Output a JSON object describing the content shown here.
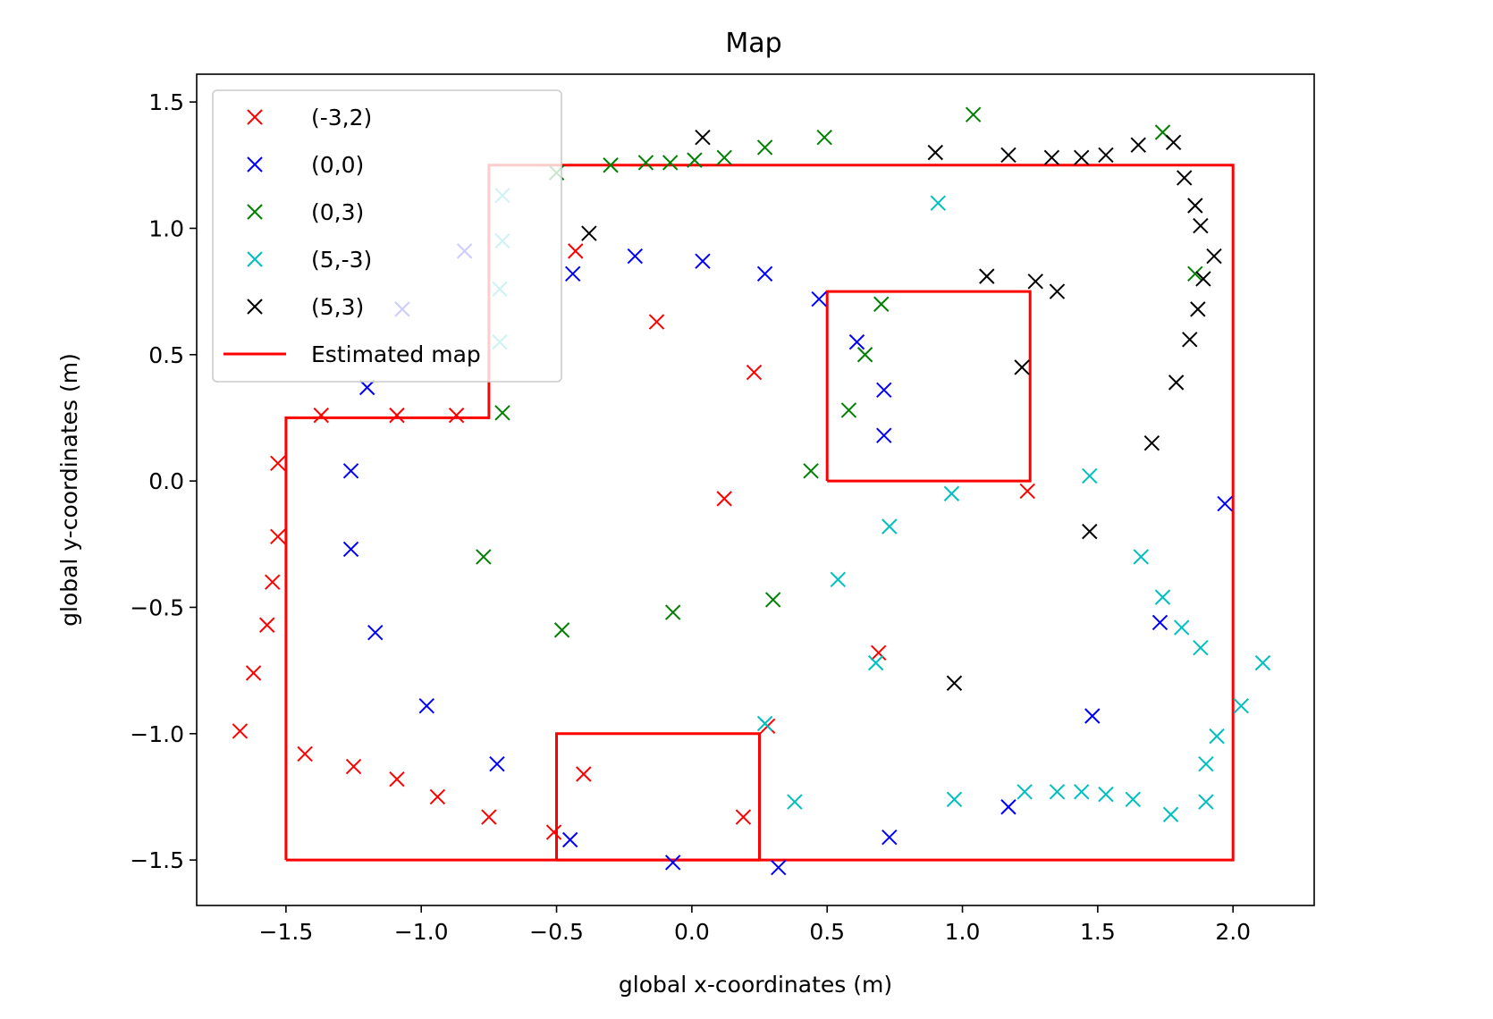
{
  "chart_data": {
    "type": "scatter",
    "title": "Map",
    "xlabel": "global x-coordinates (m)",
    "ylabel": "global y-coordinates (m)",
    "xlim": [
      -1.83,
      2.3
    ],
    "ylim": [
      -1.68,
      1.61
    ],
    "xticks": [
      -1.5,
      -1.0,
      -0.5,
      0.0,
      0.5,
      1.0,
      1.5,
      2.0
    ],
    "xtick_labels": [
      "−1.5",
      "−1.0",
      "−0.5",
      "0.0",
      "0.5",
      "1.0",
      "1.5",
      "2.0"
    ],
    "yticks": [
      -1.5,
      -1.0,
      -0.5,
      0.0,
      0.5,
      1.0,
      1.5
    ],
    "ytick_labels": [
      "−1.5",
      "−1.0",
      "−0.5",
      "0.0",
      "0.5",
      "1.0",
      "1.5"
    ],
    "grid": false,
    "legend_position": "upper-left",
    "series": [
      {
        "name": "(-3,2)",
        "color": "#ff0000",
        "marker": "x",
        "points": [
          [
            -1.67,
            -0.99
          ],
          [
            -1.62,
            -0.76
          ],
          [
            -1.57,
            -0.57
          ],
          [
            -1.55,
            -0.4
          ],
          [
            -1.53,
            -0.22
          ],
          [
            -1.53,
            0.07
          ],
          [
            -1.43,
            -1.08
          ],
          [
            -1.37,
            0.26
          ],
          [
            -1.25,
            -1.13
          ],
          [
            -1.09,
            0.26
          ],
          [
            -1.09,
            -1.18
          ],
          [
            -0.94,
            -1.25
          ],
          [
            -0.87,
            0.26
          ],
          [
            -0.75,
            -1.33
          ],
          [
            -0.51,
            -1.39
          ],
          [
            -0.43,
            0.91
          ],
          [
            -0.4,
            -1.16
          ],
          [
            -0.13,
            0.63
          ],
          [
            0.12,
            -0.07
          ],
          [
            0.23,
            0.43
          ],
          [
            0.19,
            -1.33
          ],
          [
            0.28,
            -0.97
          ],
          [
            0.69,
            -0.68
          ],
          [
            1.24,
            -0.04
          ]
        ]
      },
      {
        "name": "(0,0)",
        "color": "#0000ff",
        "marker": "x",
        "points": [
          [
            -1.07,
            0.68
          ],
          [
            -1.2,
            0.37
          ],
          [
            -1.26,
            0.04
          ],
          [
            -1.26,
            -0.27
          ],
          [
            -1.17,
            -0.6
          ],
          [
            -0.98,
            -0.89
          ],
          [
            -0.84,
            0.91
          ],
          [
            -0.72,
            -1.12
          ],
          [
            -0.44,
            0.82
          ],
          [
            -0.45,
            -1.42
          ],
          [
            -0.21,
            0.89
          ],
          [
            0.04,
            0.87
          ],
          [
            -0.07,
            -1.51
          ],
          [
            0.27,
            0.82
          ],
          [
            0.32,
            -1.53
          ],
          [
            0.47,
            0.72
          ],
          [
            0.61,
            0.55
          ],
          [
            0.71,
            0.36
          ],
          [
            0.71,
            0.18
          ],
          [
            0.73,
            -1.41
          ],
          [
            1.17,
            -1.29
          ],
          [
            1.48,
            -0.93
          ],
          [
            1.73,
            -0.56
          ],
          [
            1.97,
            -0.09
          ]
        ]
      },
      {
        "name": "(0,3)",
        "color": "#008000",
        "marker": "x",
        "points": [
          [
            -0.7,
            0.27
          ],
          [
            -0.77,
            -0.3
          ],
          [
            -0.48,
            -0.59
          ],
          [
            -0.5,
            1.22
          ],
          [
            -0.3,
            1.25
          ],
          [
            -0.17,
            1.26
          ],
          [
            -0.08,
            1.26
          ],
          [
            0.01,
            1.27
          ],
          [
            0.12,
            1.28
          ],
          [
            0.27,
            1.32
          ],
          [
            0.49,
            1.36
          ],
          [
            1.04,
            1.45
          ],
          [
            1.74,
            1.38
          ],
          [
            1.86,
            0.82
          ],
          [
            0.7,
            0.7
          ],
          [
            0.64,
            0.5
          ],
          [
            0.58,
            0.28
          ],
          [
            0.44,
            0.04
          ],
          [
            0.3,
            -0.47
          ],
          [
            -0.07,
            -0.52
          ]
        ]
      },
      {
        "name": "(5,-3)",
        "color": "#00bfbf",
        "marker": "x",
        "points": [
          [
            -0.7,
            1.13
          ],
          [
            -0.7,
            0.95
          ],
          [
            -0.71,
            0.76
          ],
          [
            -0.71,
            0.55
          ],
          [
            0.91,
            1.1
          ],
          [
            1.47,
            0.02
          ],
          [
            0.96,
            -0.05
          ],
          [
            0.73,
            -0.18
          ],
          [
            0.54,
            -0.39
          ],
          [
            0.27,
            -0.96
          ],
          [
            0.68,
            -0.72
          ],
          [
            1.66,
            -0.3
          ],
          [
            1.74,
            -0.46
          ],
          [
            1.81,
            -0.58
          ],
          [
            1.88,
            -0.66
          ],
          [
            2.11,
            -0.72
          ],
          [
            2.03,
            -0.89
          ],
          [
            1.94,
            -1.01
          ],
          [
            1.9,
            -1.12
          ],
          [
            1.9,
            -1.27
          ],
          [
            1.77,
            -1.32
          ],
          [
            1.63,
            -1.26
          ],
          [
            1.53,
            -1.24
          ],
          [
            1.44,
            -1.23
          ],
          [
            1.35,
            -1.23
          ],
          [
            1.23,
            -1.23
          ],
          [
            0.97,
            -1.26
          ],
          [
            0.38,
            -1.27
          ]
        ]
      },
      {
        "name": "(5,3)",
        "color": "#000000",
        "marker": "x",
        "points": [
          [
            -0.38,
            0.98
          ],
          [
            0.04,
            1.36
          ],
          [
            0.9,
            1.3
          ],
          [
            1.17,
            1.29
          ],
          [
            1.33,
            1.28
          ],
          [
            1.44,
            1.28
          ],
          [
            1.53,
            1.29
          ],
          [
            1.65,
            1.33
          ],
          [
            1.78,
            1.34
          ],
          [
            1.82,
            1.2
          ],
          [
            1.86,
            1.09
          ],
          [
            1.88,
            1.01
          ],
          [
            1.93,
            0.89
          ],
          [
            1.89,
            0.8
          ],
          [
            1.87,
            0.68
          ],
          [
            1.84,
            0.56
          ],
          [
            1.79,
            0.39
          ],
          [
            1.7,
            0.15
          ],
          [
            1.47,
            -0.2
          ],
          [
            1.09,
            0.81
          ],
          [
            1.27,
            0.79
          ],
          [
            1.35,
            0.75
          ],
          [
            1.22,
            0.45
          ],
          [
            0.97,
            -0.8
          ]
        ]
      }
    ],
    "lines": [
      {
        "name": "Estimated map",
        "color": "#ff0000",
        "paths": [
          [
            [
              -1.5,
              -1.5
            ],
            [
              2.0,
              -1.5
            ],
            [
              2.0,
              1.25
            ],
            [
              -0.75,
              1.25
            ],
            [
              -0.75,
              0.25
            ],
            [
              -1.5,
              0.25
            ],
            [
              -1.5,
              -1.5
            ]
          ],
          [
            [
              0.5,
              0.0
            ],
            [
              1.25,
              0.0
            ],
            [
              1.25,
              0.75
            ],
            [
              0.5,
              0.75
            ],
            [
              0.5,
              0.0
            ]
          ],
          [
            [
              -0.5,
              -1.5
            ],
            [
              0.25,
              -1.5
            ],
            [
              0.25,
              -1.0
            ],
            [
              -0.5,
              -1.0
            ],
            [
              -0.5,
              -1.5
            ]
          ]
        ]
      }
    ],
    "legend": [
      "(-3,2)",
      "(0,0)",
      "(0,3)",
      "(5,-3)",
      "(5,3)",
      "Estimated map"
    ]
  }
}
